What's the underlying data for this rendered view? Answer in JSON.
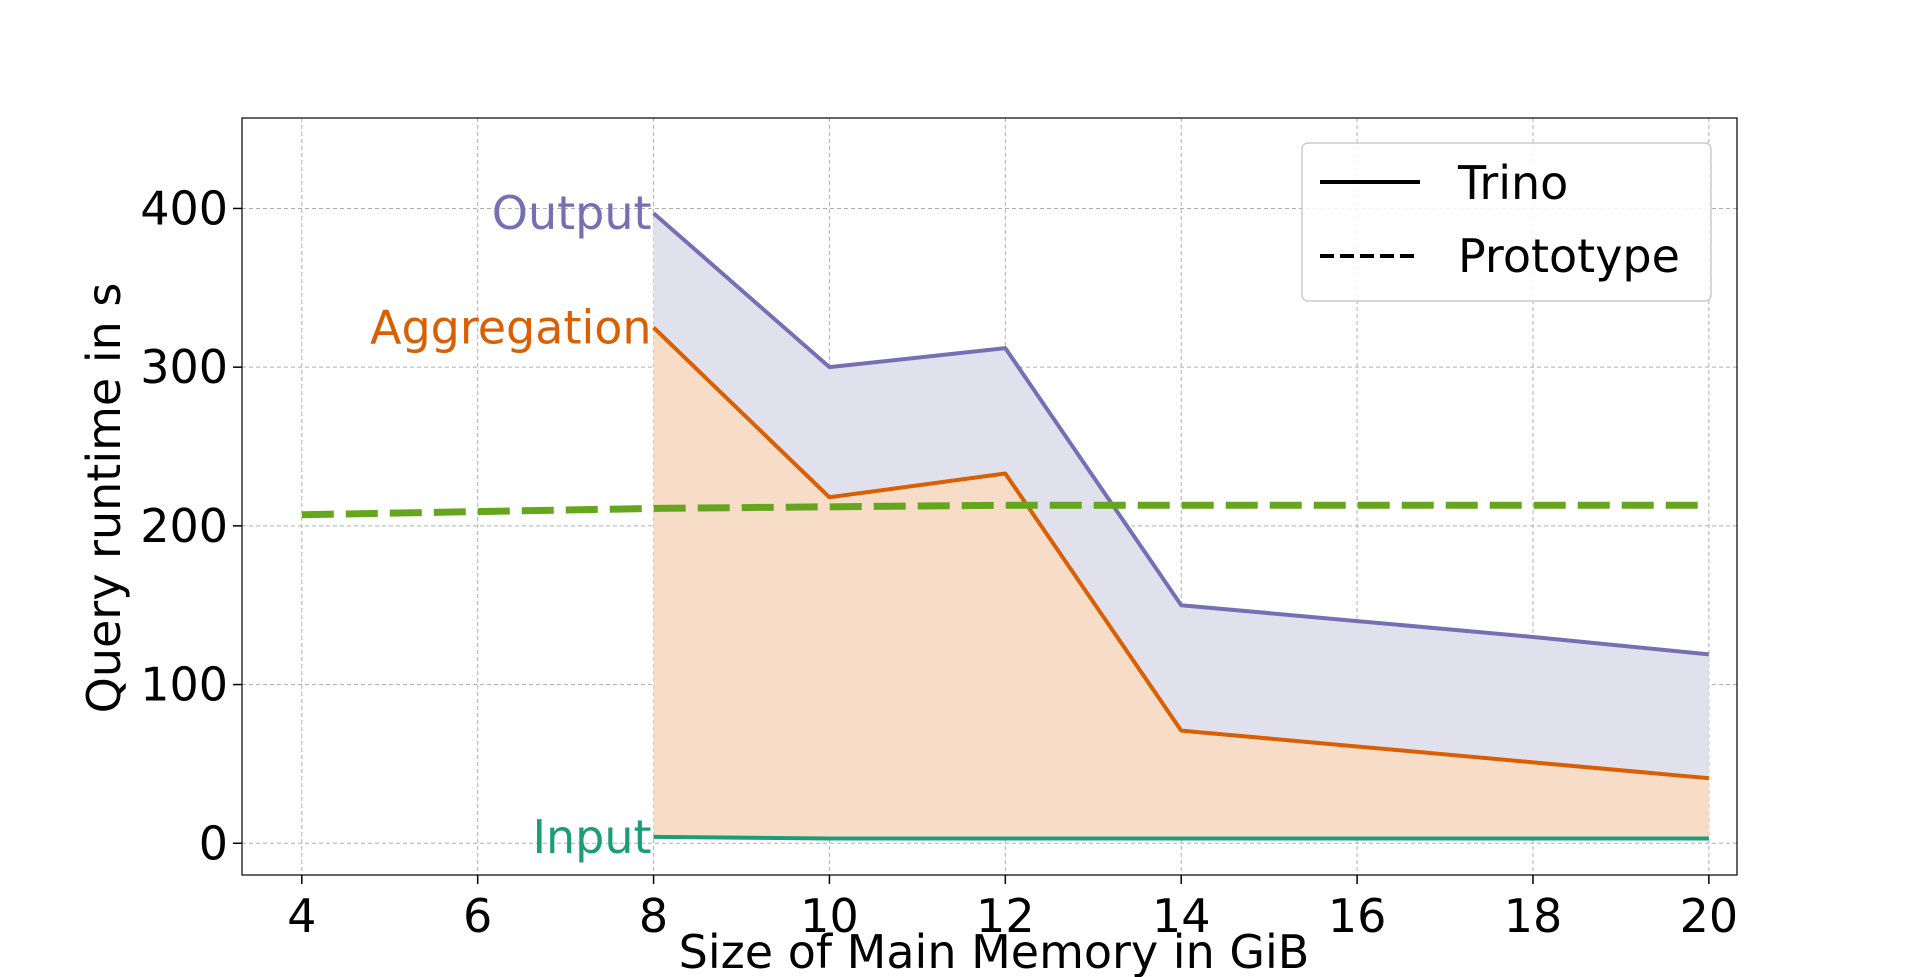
{
  "chart_data": {
    "type": "area",
    "xlabel": "Size of Main Memory in GiB",
    "ylabel": "Query runtime in s",
    "xlim": [
      3.32,
      20.32
    ],
    "ylim": [
      -20,
      457
    ],
    "xticks": [
      4,
      6,
      8,
      10,
      12,
      14,
      16,
      18,
      20
    ],
    "yticks": [
      0,
      100,
      200,
      300,
      400
    ],
    "grid": true,
    "legend": {
      "placement": "top-right",
      "entries": [
        {
          "label": "Trino",
          "style": "solid"
        },
        {
          "label": "Prototype",
          "style": "dashed"
        }
      ]
    },
    "series": [
      {
        "name": "Input",
        "x": [
          8,
          10,
          12,
          14,
          16,
          18,
          20
        ],
        "y": [
          4,
          3,
          3,
          3,
          3,
          3,
          3
        ],
        "color": "#1b9e77"
      },
      {
        "name": "Aggregation",
        "x": [
          8,
          10,
          12,
          14,
          16,
          18,
          20
        ],
        "y": [
          325,
          218,
          233,
          71,
          61,
          51,
          41
        ],
        "color": "#d95f02",
        "fill": "#f7dcc8"
      },
      {
        "name": "Output",
        "x": [
          8,
          10,
          12,
          14,
          16,
          18,
          20
        ],
        "y": [
          397,
          300,
          312,
          150,
          140,
          130,
          119
        ],
        "color": "#7570b3",
        "fill": "#e1e1ee"
      },
      {
        "x": [
          4,
          8,
          12,
          16,
          20
        ],
        "y": [
          207,
          211,
          213,
          213,
          213
        ],
        "color": "#66a61e",
        "dashed": true
      }
    ]
  }
}
